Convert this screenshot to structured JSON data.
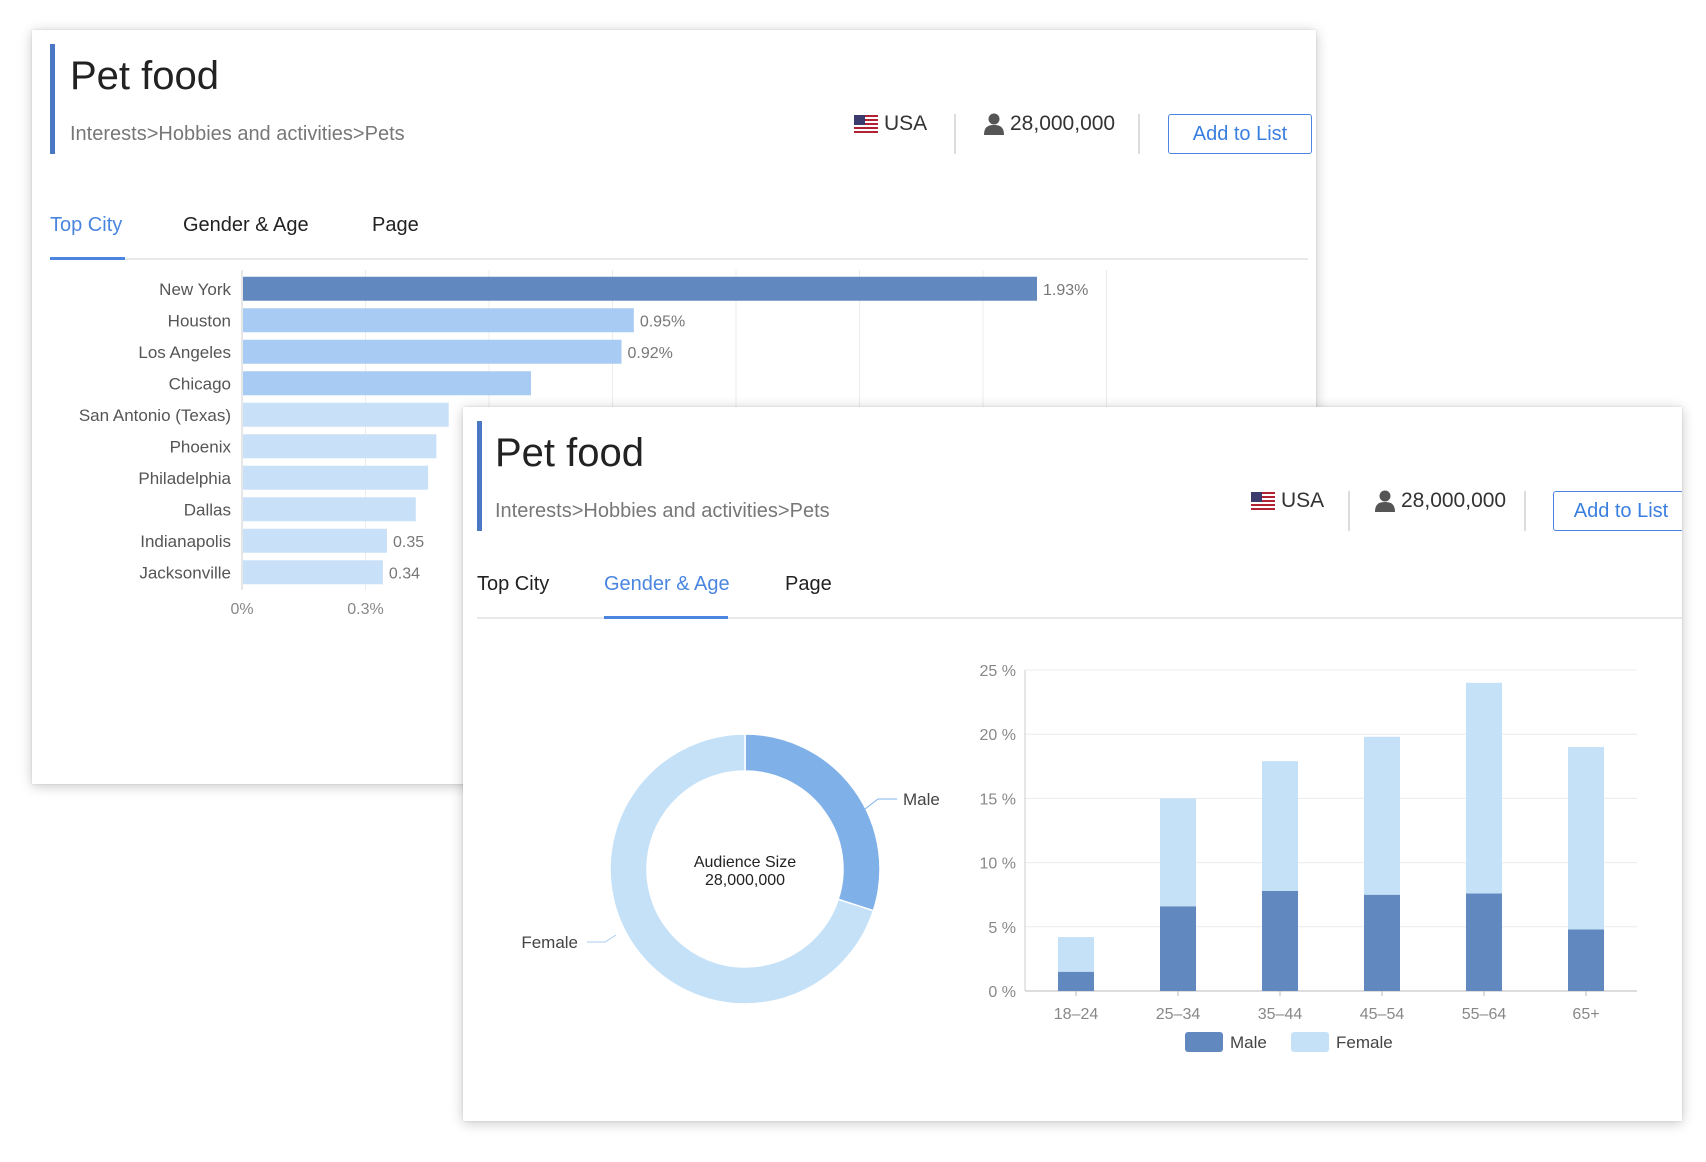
{
  "cards": [
    {
      "title": "Pet food",
      "breadcrumb": "Interests>Hobbies and activities>Pets",
      "country": "USA",
      "audience": "28,000,000",
      "add_label": "Add to List",
      "tabs": [
        "Top City",
        "Gender & Age",
        "Page"
      ],
      "active_tab": 0
    },
    {
      "title": "Pet food",
      "breadcrumb": "Interests>Hobbies and activities>Pets",
      "country": "USA",
      "audience": "28,000,000",
      "add_label": "Add to List",
      "tabs": [
        "Top City",
        "Gender & Age",
        "Page"
      ],
      "active_tab": 1
    }
  ],
  "colors": {
    "accent": "#4a86e0",
    "bar_top": "#6189c0",
    "bar_mid": "#a7cbf2",
    "bar_light": "#c8e1f8",
    "male": "#6189c0",
    "female": "#c5e1f8",
    "donut_male": "#7fb0e8",
    "donut_female": "#c5e1f8"
  },
  "chart_data": [
    {
      "type": "bar",
      "orientation": "horizontal",
      "categories": [
        "New York",
        "Houston",
        "Los Angeles",
        "Chicago",
        "San Antonio (Texas)",
        "Phoenix",
        "Philadelphia",
        "Dallas",
        "Indianapolis",
        "Jacksonville"
      ],
      "values": [
        1.93,
        0.95,
        0.92,
        0.7,
        0.5,
        0.47,
        0.45,
        0.42,
        0.35,
        0.34
      ],
      "data_labels": [
        "1.93%",
        "0.95%",
        "0.92%",
        "",
        "",
        "",
        "",
        "",
        "0.35",
        "0.34"
      ],
      "x_ticks": [
        "0%",
        "0.3%"
      ],
      "xlim": [
        0,
        2.1
      ],
      "grid": true
    },
    {
      "type": "pie",
      "variant": "donut",
      "center_label": "Audience Size",
      "center_value": "28,000,000",
      "slices": [
        {
          "name": "Male",
          "value": 30
        },
        {
          "name": "Female",
          "value": 70
        }
      ]
    },
    {
      "type": "bar",
      "stacked": true,
      "categories": [
        "18–24",
        "25–34",
        "35–44",
        "45–54",
        "55–64",
        "65+"
      ],
      "series": [
        {
          "name": "Male",
          "values": [
            1.5,
            6.6,
            7.8,
            7.5,
            7.6,
            4.8
          ]
        },
        {
          "name": "Female",
          "values": [
            2.7,
            8.4,
            10.1,
            12.3,
            16.4,
            14.2
          ]
        }
      ],
      "y_ticks": [
        "0 %",
        "5 %",
        "10 %",
        "15 %",
        "20 %",
        "25 %"
      ],
      "ylim": [
        0,
        25
      ],
      "legend": [
        "Male",
        "Female"
      ],
      "legend_position": "bottom",
      "grid": true
    }
  ]
}
